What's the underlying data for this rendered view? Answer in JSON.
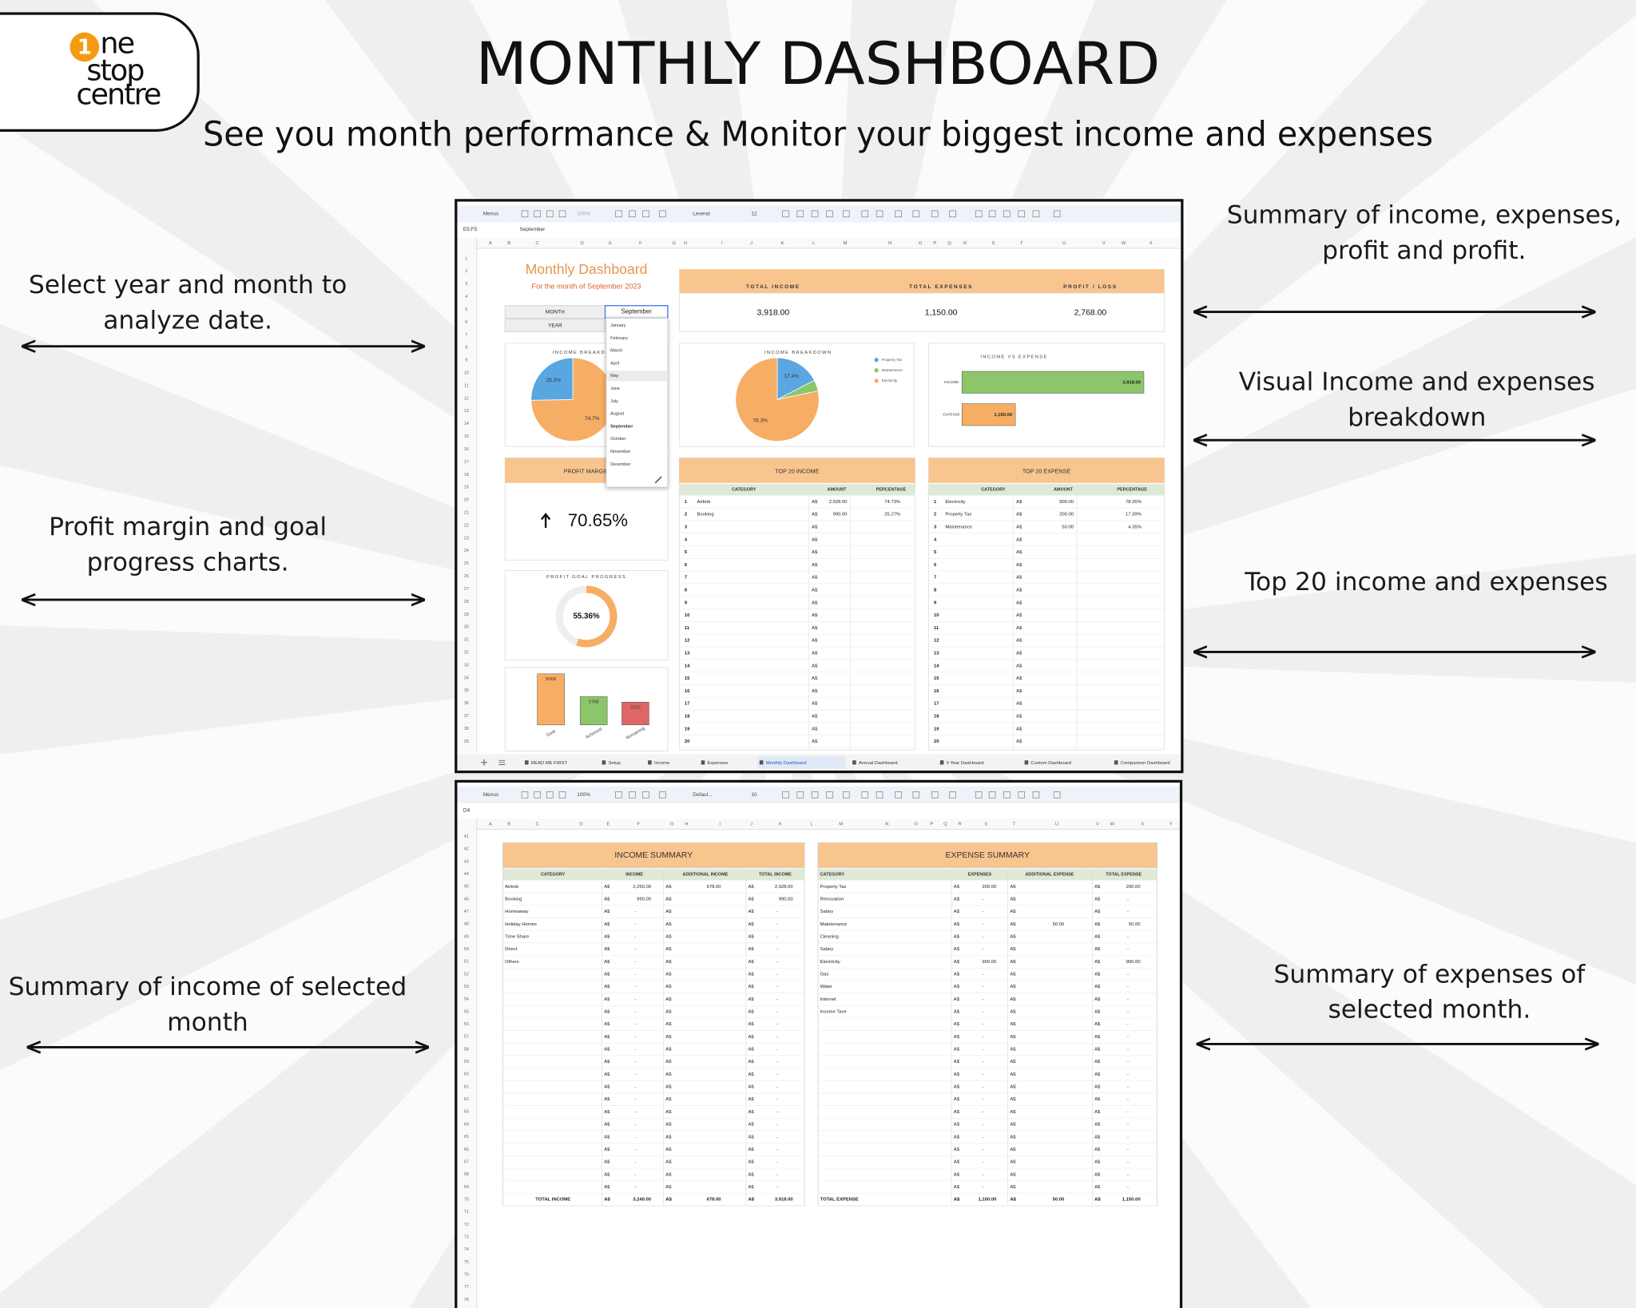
{
  "logo": {
    "digit": "1",
    "lines": [
      "ne",
      "stop",
      "centre"
    ]
  },
  "header": {
    "title": "MONTHLY DASHBOARD",
    "subtitle": "See you month performance & Monitor your biggest income and expenses"
  },
  "annotations": [
    {
      "lines": [
        "Select year and month to",
        "analyze date."
      ]
    },
    {
      "lines": [
        "Profit margin and goal",
        "progress charts."
      ]
    },
    {
      "lines": [
        "Summary of income of selected",
        "month"
      ]
    },
    {
      "lines": [
        "Summary of income, expenses,",
        "profit and profit."
      ]
    },
    {
      "lines": [
        "Visual Income and expenses",
        "breakdown"
      ]
    },
    {
      "lines": [
        "Top 20 income and expenses"
      ]
    },
    {
      "lines": [
        "Summary of expenses of",
        "selected month."
      ]
    }
  ],
  "dashboard_sheet": {
    "toolbar": [
      "Menus",
      "100%",
      "Lexend",
      "12"
    ],
    "cell_ref": "E5:F5",
    "formula": "September",
    "columns": [
      "A",
      "B",
      "C",
      "D",
      "E",
      "F",
      "G",
      "H",
      "I",
      "J",
      "K",
      "L",
      "M",
      "N",
      "O",
      "P",
      "Q",
      "R",
      "S",
      "T",
      "U",
      "V",
      "W",
      "X"
    ],
    "row_numbers": [
      1,
      2,
      3,
      4,
      5,
      6,
      7,
      8,
      9,
      10,
      11,
      12,
      13,
      14,
      15,
      16,
      17,
      18,
      19,
      20,
      21,
      22,
      23,
      24,
      25,
      26,
      27,
      28,
      29,
      30,
      31,
      32,
      33,
      34,
      35,
      36,
      37,
      38,
      39
    ],
    "title": "Monthly Dashboard",
    "subtitle": "For the month of September 2023",
    "selectors": [
      {
        "label": "MONTH",
        "value": "September"
      },
      {
        "label": "YEAR"
      }
    ],
    "month_options": [
      "January",
      "February",
      "March",
      "April",
      "May",
      "June",
      "July",
      "August",
      "September",
      "October",
      "November",
      "December"
    ],
    "kpis": [
      {
        "label": "TOTAL INCOME",
        "value": "3,918.00"
      },
      {
        "label": "TOTAL EXPENSES",
        "value": "1,150.00"
      },
      {
        "label": "PROFIT / LOSS",
        "value": "2,768.00"
      }
    ],
    "income_pie": {
      "type": "pie",
      "title": "INCOME BREAKDOWN",
      "values": [
        74.7,
        25.3
      ],
      "value_labels": [
        "74.7%",
        "25.3%"
      ],
      "colors": [
        "#f6ad64",
        "#5aa6e0"
      ]
    },
    "expense_pie": {
      "type": "pie",
      "title": "INCOME BREAKDOWN",
      "legend": [
        "Property Tax",
        "Maintenance",
        "Electricity"
      ],
      "values": [
        17.4,
        4.3,
        78.3
      ],
      "value_labels": [
        "17.4%",
        null,
        "78.3%"
      ],
      "colors": [
        "#5aa6e0",
        "#8cc56a",
        "#f6ad64"
      ]
    },
    "income_vs_expense": {
      "type": "bar",
      "title": "INCOME VS EXPENSE",
      "categories": [
        "INCOME",
        "EXPENSE"
      ],
      "values": [
        3918,
        1150
      ],
      "value_labels": [
        "3,918.00",
        "1,150.00"
      ],
      "colors": [
        "#8cc56a",
        "#f6ad64"
      ],
      "xlim": [
        0,
        4000
      ]
    },
    "profit_margin": {
      "title": "PROFIT MARGIN",
      "value": "70.65%"
    },
    "goal_progress": {
      "type": "donut",
      "title": "PROFIT GOAL PROGRESS",
      "value": 55.36,
      "value_label": "55.36%",
      "color": "#f6ad64"
    },
    "goal_bars": {
      "type": "bar",
      "categories": [
        "Goal",
        "Achieved",
        "Remaining"
      ],
      "values": [
        5000,
        2768,
        2232
      ],
      "colors": [
        "#f6ad64",
        "#8cc56a",
        "#e06666"
      ],
      "ylim": [
        0,
        5000
      ]
    },
    "top_income": {
      "title": "TOP 20 INCOME",
      "header": [
        "CATEGORY",
        "AMOUNT",
        "PERCENTAGE"
      ],
      "rows": [
        [
          1,
          "Airbnb",
          "A$",
          "2,928.00",
          "74.73%"
        ],
        [
          2,
          "Booking",
          "A$",
          "990.00",
          "25.27%"
        ],
        [
          3,
          null,
          "A$",
          null,
          null
        ],
        [
          4,
          null,
          "A$",
          null,
          null
        ],
        [
          5,
          null,
          "A$",
          null,
          null
        ],
        [
          6,
          null,
          "A$",
          null,
          null
        ],
        [
          7,
          null,
          "A$",
          null,
          null
        ],
        [
          8,
          null,
          "A$",
          null,
          null
        ],
        [
          9,
          null,
          "A$",
          null,
          null
        ],
        [
          10,
          null,
          "A$",
          null,
          null
        ],
        [
          11,
          null,
          "A$",
          null,
          null
        ],
        [
          12,
          null,
          "A$",
          null,
          null
        ],
        [
          13,
          null,
          "A$",
          null,
          null
        ],
        [
          14,
          null,
          "A$",
          null,
          null
        ],
        [
          15,
          null,
          "A$",
          null,
          null
        ],
        [
          16,
          null,
          "A$",
          null,
          null
        ],
        [
          17,
          null,
          "A$",
          null,
          null
        ],
        [
          18,
          null,
          "A$",
          null,
          null
        ],
        [
          19,
          null,
          "A$",
          null,
          null
        ],
        [
          20,
          null,
          "A$",
          null,
          null
        ]
      ]
    },
    "top_expense": {
      "title": "TOP 20 EXPENSE",
      "header": [
        "CATEGORY",
        "AMOUNT",
        "PERCENTAGE"
      ],
      "rows": [
        [
          1,
          "Electricity",
          "A$",
          "900.00",
          "78.26%"
        ],
        [
          2,
          "Property Tax",
          "A$",
          "200.00",
          "17.39%"
        ],
        [
          3,
          "Maintenance",
          "A$",
          "50.00",
          "4.35%"
        ],
        [
          4,
          null,
          "A$",
          null,
          null
        ],
        [
          5,
          null,
          "A$",
          null,
          null
        ],
        [
          6,
          null,
          "A$",
          null,
          null
        ],
        [
          7,
          null,
          "A$",
          null,
          null
        ],
        [
          8,
          null,
          "A$",
          null,
          null
        ],
        [
          9,
          null,
          "A$",
          null,
          null
        ],
        [
          10,
          null,
          "A$",
          null,
          null
        ],
        [
          11,
          null,
          "A$",
          null,
          null
        ],
        [
          12,
          null,
          "A$",
          null,
          null
        ],
        [
          13,
          null,
          "A$",
          null,
          null
        ],
        [
          14,
          null,
          "A$",
          null,
          null
        ],
        [
          15,
          null,
          "A$",
          null,
          null
        ],
        [
          16,
          null,
          "A$",
          null,
          null
        ],
        [
          17,
          null,
          "A$",
          null,
          null
        ],
        [
          18,
          null,
          "A$",
          null,
          null
        ],
        [
          19,
          null,
          "A$",
          null,
          null
        ],
        [
          20,
          null,
          "A$",
          null,
          null
        ]
      ]
    },
    "tabs": [
      "READ ME FIRST",
      "Setup",
      "Income",
      "Expenses",
      "Monthly Dashboard",
      "Annual Dashboard",
      "5 Year Dashboard",
      "Custom Dashboard",
      "Comparison Dashboard"
    ]
  },
  "summary_sheet": {
    "toolbar": [
      "Menus",
      "100%",
      "Defaul...",
      "10"
    ],
    "cell_ref": "D4",
    "columns": [
      "A",
      "B",
      "C",
      "D",
      "E",
      "F",
      "G",
      "H",
      "I",
      "J",
      "K",
      "L",
      "M",
      "N",
      "O",
      "P",
      "Q",
      "R",
      "S",
      "T",
      "U",
      "V",
      "W",
      "X",
      "Y"
    ],
    "row_numbers": [
      41,
      42,
      43,
      44,
      45,
      46,
      47,
      48,
      49,
      50,
      51,
      52,
      53,
      54,
      55,
      56,
      57,
      58,
      59,
      60,
      61,
      62,
      63,
      64,
      65,
      66,
      67,
      68,
      69,
      70,
      71,
      72,
      73,
      74,
      75,
      76,
      77,
      78
    ],
    "income_summary": {
      "title": "INCOME SUMMARY",
      "header": [
        "CATEGORY",
        "INCOME",
        "ADDITIONAL INCOME",
        "TOTAL INCOME"
      ],
      "rows": [
        [
          "Airbnb",
          "A$",
          "2,250.00",
          "A$",
          "678.00",
          "A$",
          "2,928.00"
        ],
        [
          "Booking",
          "A$",
          "990.00",
          "A$",
          null,
          "A$",
          "990.00"
        ],
        [
          "Homeaway",
          "A$",
          "-",
          "A$",
          null,
          "A$",
          "-"
        ],
        [
          "Holiday Homes",
          "A$",
          "-",
          "A$",
          null,
          "A$",
          "-"
        ],
        [
          "Time Share",
          "A$",
          "-",
          "A$",
          null,
          "A$",
          "-"
        ],
        [
          "Direct",
          "A$",
          "-",
          "A$",
          null,
          "A$",
          "-"
        ],
        [
          "Others",
          "A$",
          "-",
          "A$",
          null,
          "A$",
          "-"
        ],
        [
          null,
          "A$",
          "-",
          "A$",
          null,
          "A$",
          "-"
        ],
        [
          null,
          "A$",
          "-",
          "A$",
          null,
          "A$",
          "-"
        ],
        [
          null,
          "A$",
          "-",
          "A$",
          null,
          "A$",
          "-"
        ],
        [
          null,
          "A$",
          "-",
          "A$",
          null,
          "A$",
          "-"
        ],
        [
          null,
          "A$",
          "-",
          "A$",
          null,
          "A$",
          "-"
        ],
        [
          null,
          "A$",
          "-",
          "A$",
          null,
          "A$",
          "-"
        ],
        [
          null,
          "A$",
          "-",
          "A$",
          null,
          "A$",
          "-"
        ],
        [
          null,
          "A$",
          "-",
          "A$",
          null,
          "A$",
          "-"
        ],
        [
          null,
          "A$",
          "-",
          "A$",
          null,
          "A$",
          "-"
        ],
        [
          null,
          "A$",
          "-",
          "A$",
          null,
          "A$",
          "-"
        ],
        [
          null,
          "A$",
          "-",
          "A$",
          null,
          "A$",
          "-"
        ],
        [
          null,
          "A$",
          "-",
          "A$",
          null,
          "A$",
          "-"
        ],
        [
          null,
          "A$",
          "-",
          "A$",
          null,
          "A$",
          "-"
        ],
        [
          null,
          "A$",
          "-",
          "A$",
          null,
          "A$",
          "-"
        ],
        [
          null,
          "A$",
          "-",
          "A$",
          null,
          "A$",
          "-"
        ],
        [
          null,
          "A$",
          "-",
          "A$",
          null,
          "A$",
          "-"
        ],
        [
          null,
          "A$",
          "-",
          "A$",
          null,
          "A$",
          "-"
        ],
        [
          null,
          "A$",
          "-",
          "A$",
          null,
          "A$",
          "-"
        ]
      ],
      "total": [
        "TOTAL INCOME",
        "A$",
        "3,240.00",
        "A$",
        "678.00",
        "A$",
        "3,918.00"
      ]
    },
    "expense_summary": {
      "title": "EXPENSE SUMMARY",
      "header": [
        "CATEGORY",
        "EXPENSES",
        "ADDITIONAL EXPENSE",
        "TOTAL EXPENSE"
      ],
      "rows": [
        [
          "Property Tax",
          "A$",
          "200.00",
          "A$",
          null,
          "A$",
          "200.00"
        ],
        [
          "Renovation",
          "A$",
          "-",
          "A$",
          null,
          "A$",
          "-"
        ],
        [
          "Salary",
          "A$",
          "-",
          "A$",
          null,
          "A$",
          "-"
        ],
        [
          "Maintenance",
          "A$",
          "-",
          "A$",
          "50.00",
          "A$",
          "50.00"
        ],
        [
          "Cleaning",
          "A$",
          "-",
          "A$",
          null,
          "A$",
          "-"
        ],
        [
          "Salary",
          "A$",
          "-",
          "A$",
          null,
          "A$",
          "-"
        ],
        [
          "Electricity",
          "A$",
          "900.00",
          "A$",
          null,
          "A$",
          "900.00"
        ],
        [
          "Gas",
          "A$",
          "-",
          "A$",
          null,
          "A$",
          "-"
        ],
        [
          "Water",
          "A$",
          "-",
          "A$",
          null,
          "A$",
          "-"
        ],
        [
          "Internet",
          "A$",
          "-",
          "A$",
          null,
          "A$",
          "-"
        ],
        [
          "Income Taxe",
          "A$",
          "-",
          "A$",
          null,
          "A$",
          "-"
        ],
        [
          null,
          "A$",
          "-",
          "A$",
          null,
          "A$",
          "-"
        ],
        [
          null,
          "A$",
          "-",
          "A$",
          null,
          "A$",
          "-"
        ],
        [
          null,
          "A$",
          "-",
          "A$",
          null,
          "A$",
          "-"
        ],
        [
          null,
          "A$",
          "-",
          "A$",
          null,
          "A$",
          "-"
        ],
        [
          null,
          "A$",
          "-",
          "A$",
          null,
          "A$",
          "-"
        ],
        [
          null,
          "A$",
          "-",
          "A$",
          null,
          "A$",
          "-"
        ],
        [
          null,
          "A$",
          "-",
          "A$",
          null,
          "A$",
          "-"
        ],
        [
          null,
          "A$",
          "-",
          "A$",
          null,
          "A$",
          "-"
        ],
        [
          null,
          "A$",
          "-",
          "A$",
          null,
          "A$",
          "-"
        ],
        [
          null,
          "A$",
          "-",
          "A$",
          null,
          "A$",
          "-"
        ],
        [
          null,
          "A$",
          "-",
          "A$",
          null,
          "A$",
          "-"
        ],
        [
          null,
          "A$",
          "-",
          "A$",
          null,
          "A$",
          "-"
        ],
        [
          null,
          "A$",
          "-",
          "A$",
          null,
          "A$",
          "-"
        ],
        [
          null,
          "A$",
          "-",
          "A$",
          null,
          "A$",
          "-"
        ]
      ],
      "total": [
        "TOTAL EXPENSE",
        "A$",
        "1,100.00",
        "A$",
        "50.00",
        "A$",
        "1,150.00"
      ]
    }
  }
}
